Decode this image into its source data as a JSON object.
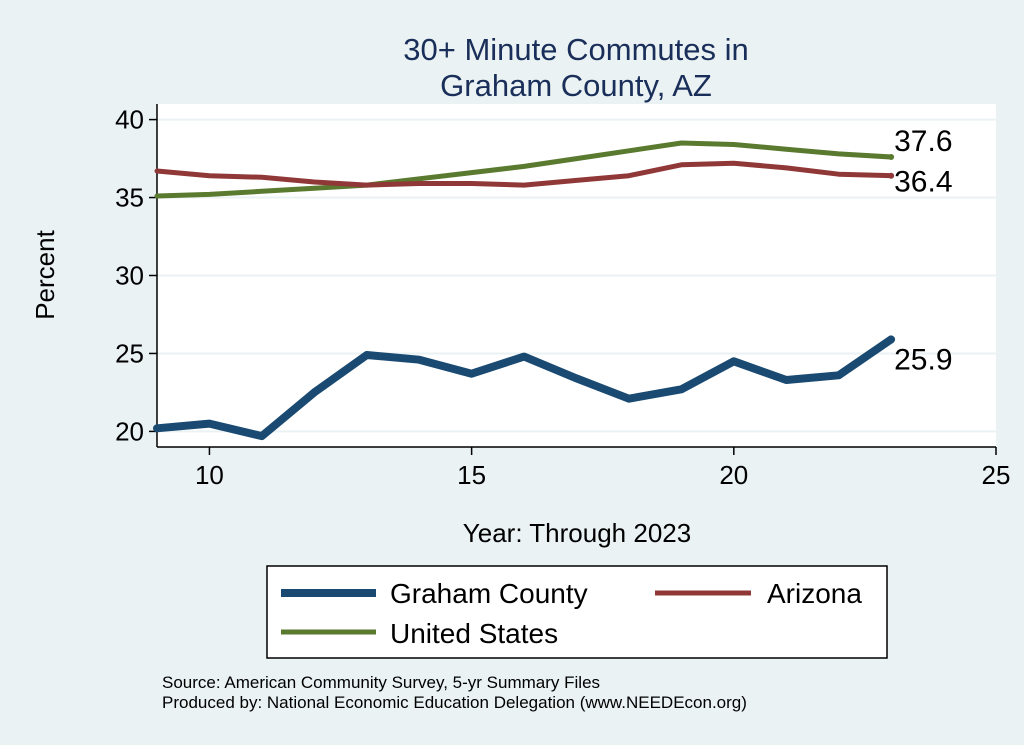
{
  "chart_data": {
    "type": "line",
    "title": [
      "30+ Minute Commutes in",
      "Graham County, AZ"
    ],
    "xlabel": "Year: Through 2023",
    "ylabel": "Percent",
    "xlim": [
      9,
      25
    ],
    "ylim": [
      19,
      41
    ],
    "xticks": [
      10,
      15,
      20,
      25
    ],
    "yticks": [
      20,
      25,
      30,
      35,
      40
    ],
    "grid": true,
    "legend_position": "bottom",
    "series": [
      {
        "name": "Graham County",
        "color": "#1a4a72",
        "x": [
          9,
          10,
          11,
          12,
          13,
          14,
          15,
          16,
          17,
          18,
          19,
          20,
          21,
          22,
          23
        ],
        "y": [
          20.2,
          20.5,
          19.7,
          22.5,
          24.9,
          24.6,
          23.7,
          24.8,
          23.4,
          22.1,
          22.7,
          24.5,
          23.3,
          23.6,
          25.9
        ],
        "end_label": "25.9"
      },
      {
        "name": "Arizona",
        "color": "#903838",
        "x": [
          9,
          10,
          11,
          12,
          13,
          14,
          15,
          16,
          17,
          18,
          19,
          20,
          21,
          22,
          23
        ],
        "y": [
          36.7,
          36.4,
          36.3,
          36.0,
          35.8,
          35.9,
          35.9,
          35.8,
          36.1,
          36.4,
          37.1,
          37.2,
          36.9,
          36.5,
          36.4
        ],
        "end_label": "36.4"
      },
      {
        "name": "United States",
        "color": "#5a7a30",
        "x": [
          9,
          10,
          11,
          12,
          13,
          14,
          15,
          16,
          17,
          18,
          19,
          20,
          21,
          22,
          23
        ],
        "y": [
          35.1,
          35.2,
          35.4,
          35.6,
          35.8,
          36.2,
          36.6,
          37.0,
          37.5,
          38.0,
          38.5,
          38.4,
          38.1,
          37.8,
          37.6
        ],
        "end_label": "37.6"
      }
    ],
    "notes": [
      "Source: American Community Survey, 5-yr Summary Files",
      "Produced by: National Economic Education Delegation (www.NEEDEcon.org)"
    ]
  }
}
